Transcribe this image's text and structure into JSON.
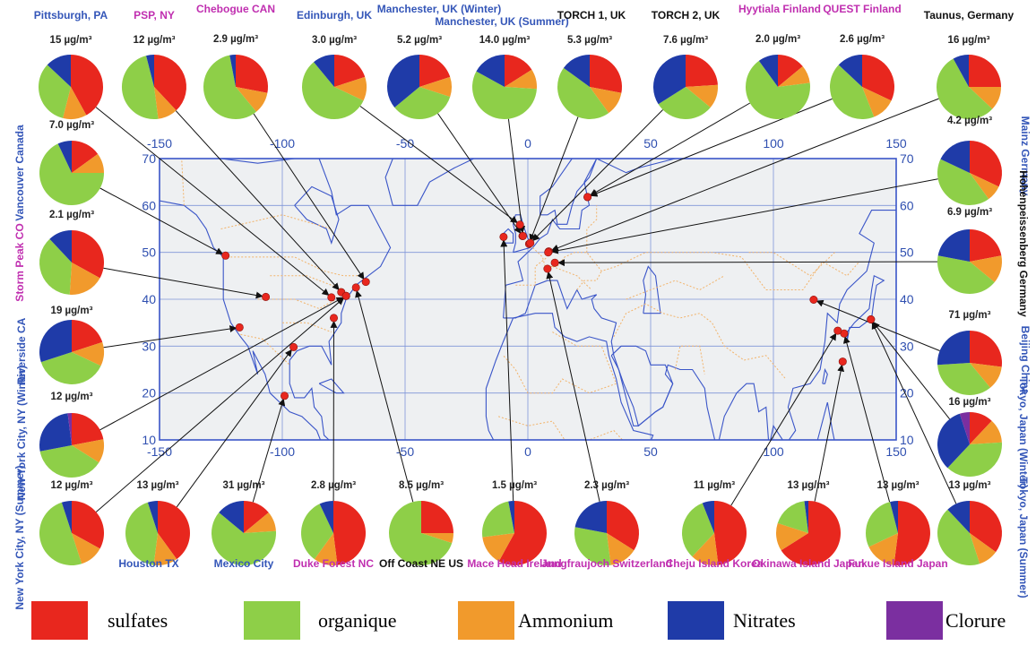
{
  "colors": {
    "sulfates": "#e8271e",
    "organique": "#8ecf48",
    "ammonium": "#f19a2c",
    "nitrates": "#1f3ba8",
    "chlorure": "#7b2fa0",
    "blue_label": "#3456b8",
    "magenta_label": "#c02fb0",
    "black_label": "#111111",
    "map_border": "#3a55c8",
    "map_grid": "#7f95d8",
    "map_political": "#f2b36a",
    "map_bg": "#eef0f2"
  },
  "legend": [
    {
      "key": "sulfates",
      "label": "sulfates"
    },
    {
      "key": "organique",
      "label": "organique"
    },
    {
      "key": "ammonium",
      "label": "Ammonium"
    },
    {
      "key": "nitrates",
      "label": "Nitrates"
    },
    {
      "key": "chlorure",
      "label": "Clorure"
    }
  ],
  "chart_data": {
    "type": "pie",
    "xlabel": "",
    "ylabel": "",
    "axes": {
      "x_ticks": [
        -150,
        -100,
        -50,
        0,
        50,
        100,
        150
      ],
      "y_ticks": [
        10,
        20,
        30,
        40,
        50,
        60,
        70
      ],
      "xlim": [
        -150,
        150
      ],
      "ylim": [
        10,
        70
      ],
      "grid": true
    },
    "component_order": [
      "sulfates",
      "ammonium",
      "organique",
      "nitrates",
      "chlorure"
    ],
    "sites": [
      {
        "name": "Pittsburgh, PA",
        "conc": "15 µg/m³",
        "label_color": "blue",
        "lat": 40.4,
        "lon": -80,
        "fractions": [
          0.42,
          0.12,
          0.33,
          0.13,
          0.0
        ]
      },
      {
        "name": "PSP, NY",
        "conc": "12 µg/m³",
        "label_color": "magenta",
        "lat": 41.5,
        "lon": -76,
        "fractions": [
          0.38,
          0.1,
          0.48,
          0.04,
          0.0
        ]
      },
      {
        "name": "Chebogue CAN",
        "conc": "2.9 µg/m³",
        "label_color": "magenta",
        "lat": 43.7,
        "lon": -66,
        "fractions": [
          0.28,
          0.11,
          0.58,
          0.03,
          0.0
        ]
      },
      {
        "name": "Edinburgh, UK",
        "conc": "3.0 µg/m³",
        "label_color": "blue",
        "lat": 55.9,
        "lon": -3.2,
        "fractions": [
          0.2,
          0.12,
          0.57,
          0.11,
          0.0
        ]
      },
      {
        "name": "Manchester, UK (Winter)",
        "conc": "5.2 µg/m³",
        "label_color": "blue",
        "lat": 53.5,
        "lon": -2.2,
        "fractions": [
          0.2,
          0.1,
          0.34,
          0.36,
          0.0
        ]
      },
      {
        "name": "Manchester, UK (Summer)",
        "conc": "14.0 µg/m³",
        "label_color": "blue",
        "lat": 53.5,
        "lon": -2.0,
        "fractions": [
          0.16,
          0.1,
          0.57,
          0.17,
          0.0
        ]
      },
      {
        "name": "TORCH 1, UK",
        "conc": "5.3 µg/m³",
        "label_color": "black",
        "lat": 51.8,
        "lon": 0.5,
        "fractions": [
          0.28,
          0.12,
          0.45,
          0.15,
          0.0
        ]
      },
      {
        "name": "TORCH 2, UK",
        "conc": "7.6 µg/m³",
        "label_color": "black",
        "lat": 52.0,
        "lon": 1.0,
        "fractions": [
          0.24,
          0.12,
          0.3,
          0.34,
          0.0
        ]
      },
      {
        "name": "Hyytiala Finland",
        "conc": "2.0 µg/m³",
        "label_color": "magenta",
        "lat": 61.8,
        "lon": 24.3,
        "fractions": [
          0.14,
          0.09,
          0.67,
          0.1,
          0.0
        ]
      },
      {
        "name": "QUEST Finland",
        "conc": "2.6 µg/m³",
        "label_color": "magenta",
        "lat": 61.8,
        "lon": 24.3,
        "fractions": [
          0.32,
          0.12,
          0.43,
          0.13,
          0.0
        ]
      },
      {
        "name": "Taunus, Germany",
        "conc": "16 µg/m³",
        "label_color": "black",
        "lat": 50.2,
        "lon": 8.5,
        "fractions": [
          0.25,
          0.12,
          0.55,
          0.08,
          0.0
        ]
      },
      {
        "name": "Mainz Germany",
        "conc": "4.2 µg/m³",
        "label_color": "blue",
        "lat": 50.0,
        "lon": 8.3,
        "fractions": [
          0.32,
          0.08,
          0.42,
          0.18,
          0.0
        ]
      },
      {
        "name": "Hohenpeissenberg Germany",
        "conc": "6.9 µg/m³",
        "label_color": "black",
        "lat": 47.8,
        "lon": 11.0,
        "fractions": [
          0.22,
          0.14,
          0.42,
          0.22,
          0.0
        ]
      },
      {
        "name": "Beijing China",
        "conc": "71 µg/m³",
        "label_color": "blue",
        "lat": 39.9,
        "lon": 116.4,
        "fractions": [
          0.27,
          0.12,
          0.35,
          0.26,
          0.0
        ]
      },
      {
        "name": "Tokyo, Japan (Winter)",
        "conc": "16 µg/m³",
        "label_color": "blue",
        "lat": 35.7,
        "lon": 139.7,
        "fractions": [
          0.12,
          0.12,
          0.38,
          0.33,
          0.05
        ]
      },
      {
        "name": "Tokyo, Japan (Summer)",
        "conc": "13 µg/m³",
        "label_color": "blue",
        "lat": 35.7,
        "lon": 139.7,
        "fractions": [
          0.35,
          0.1,
          0.43,
          0.12,
          0.0
        ]
      },
      {
        "name": "Fukue Island Japan",
        "conc": "13 µg/m³",
        "label_color": "magenta",
        "lat": 32.7,
        "lon": 128.8,
        "fractions": [
          0.52,
          0.16,
          0.28,
          0.04,
          0.0
        ]
      },
      {
        "name": "Okinawa Island Japan",
        "conc": "13 µg/m³",
        "label_color": "magenta",
        "lat": 26.7,
        "lon": 128.2,
        "fractions": [
          0.66,
          0.14,
          0.18,
          0.02,
          0.0
        ]
      },
      {
        "name": "Cheju Island Korea",
        "conc": "11 µg/m³",
        "label_color": "magenta",
        "lat": 33.3,
        "lon": 126.2,
        "fractions": [
          0.48,
          0.14,
          0.32,
          0.06,
          0.0
        ]
      },
      {
        "name": "Jungfraujoch Switzerland",
        "conc": "2.3 µg/m³",
        "label_color": "magenta",
        "lat": 46.5,
        "lon": 8.0,
        "fractions": [
          0.34,
          0.14,
          0.3,
          0.22,
          0.0
        ]
      },
      {
        "name": "Mace Head Ireland",
        "conc": "1.5 µg/m³",
        "label_color": "magenta",
        "lat": 53.3,
        "lon": -9.9,
        "fractions": [
          0.58,
          0.15,
          0.24,
          0.03,
          0.0
        ]
      },
      {
        "name": "Off Coast NE US",
        "conc": "8.5 µg/m³",
        "label_color": "black",
        "lat": 42.5,
        "lon": -70,
        "fractions": [
          0.25,
          0.05,
          0.7,
          0.0,
          0.0
        ]
      },
      {
        "name": "Duke Forest NC",
        "conc": "2.8 µg/m³",
        "label_color": "magenta",
        "lat": 36.0,
        "lon": -79.0,
        "fractions": [
          0.48,
          0.12,
          0.33,
          0.07,
          0.0
        ]
      },
      {
        "name": "Mexico City",
        "conc": "31 µg/m³",
        "label_color": "blue",
        "lat": 19.4,
        "lon": -99.1,
        "fractions": [
          0.14,
          0.1,
          0.62,
          0.14,
          0.0
        ]
      },
      {
        "name": "Houston TX",
        "conc": "13 µg/m³",
        "label_color": "blue",
        "lat": 29.8,
        "lon": -95.4,
        "fractions": [
          0.4,
          0.12,
          0.43,
          0.05,
          0.0
        ]
      },
      {
        "name": "New York City, NY (Summer)",
        "conc": "12 µg/m³",
        "label_color": "blue",
        "lat": 40.7,
        "lon": -74.0,
        "fractions": [
          0.33,
          0.12,
          0.5,
          0.05,
          0.0
        ]
      },
      {
        "name": "New York City, NY (Winter)",
        "conc": "12 µg/m³",
        "label_color": "blue",
        "lat": 40.7,
        "lon": -74.0,
        "fractions": [
          0.22,
          0.12,
          0.38,
          0.26,
          0.02
        ]
      },
      {
        "name": "Riverside CA",
        "conc": "19 µg/m³",
        "label_color": "blue",
        "lat": 34.0,
        "lon": -117.4,
        "fractions": [
          0.2,
          0.12,
          0.38,
          0.3,
          0.0
        ]
      },
      {
        "name": "Storm Peak CO",
        "conc": "2.1 µg/m³",
        "label_color": "magenta",
        "lat": 40.5,
        "lon": -106.7,
        "fractions": [
          0.33,
          0.18,
          0.37,
          0.12,
          0.0
        ]
      },
      {
        "name": "Vancouver Canada",
        "conc": "7.0 µg/m³",
        "label_color": "blue",
        "lat": 49.3,
        "lon": -123.1,
        "fractions": [
          0.15,
          0.1,
          0.68,
          0.07,
          0.0
        ]
      }
    ]
  }
}
